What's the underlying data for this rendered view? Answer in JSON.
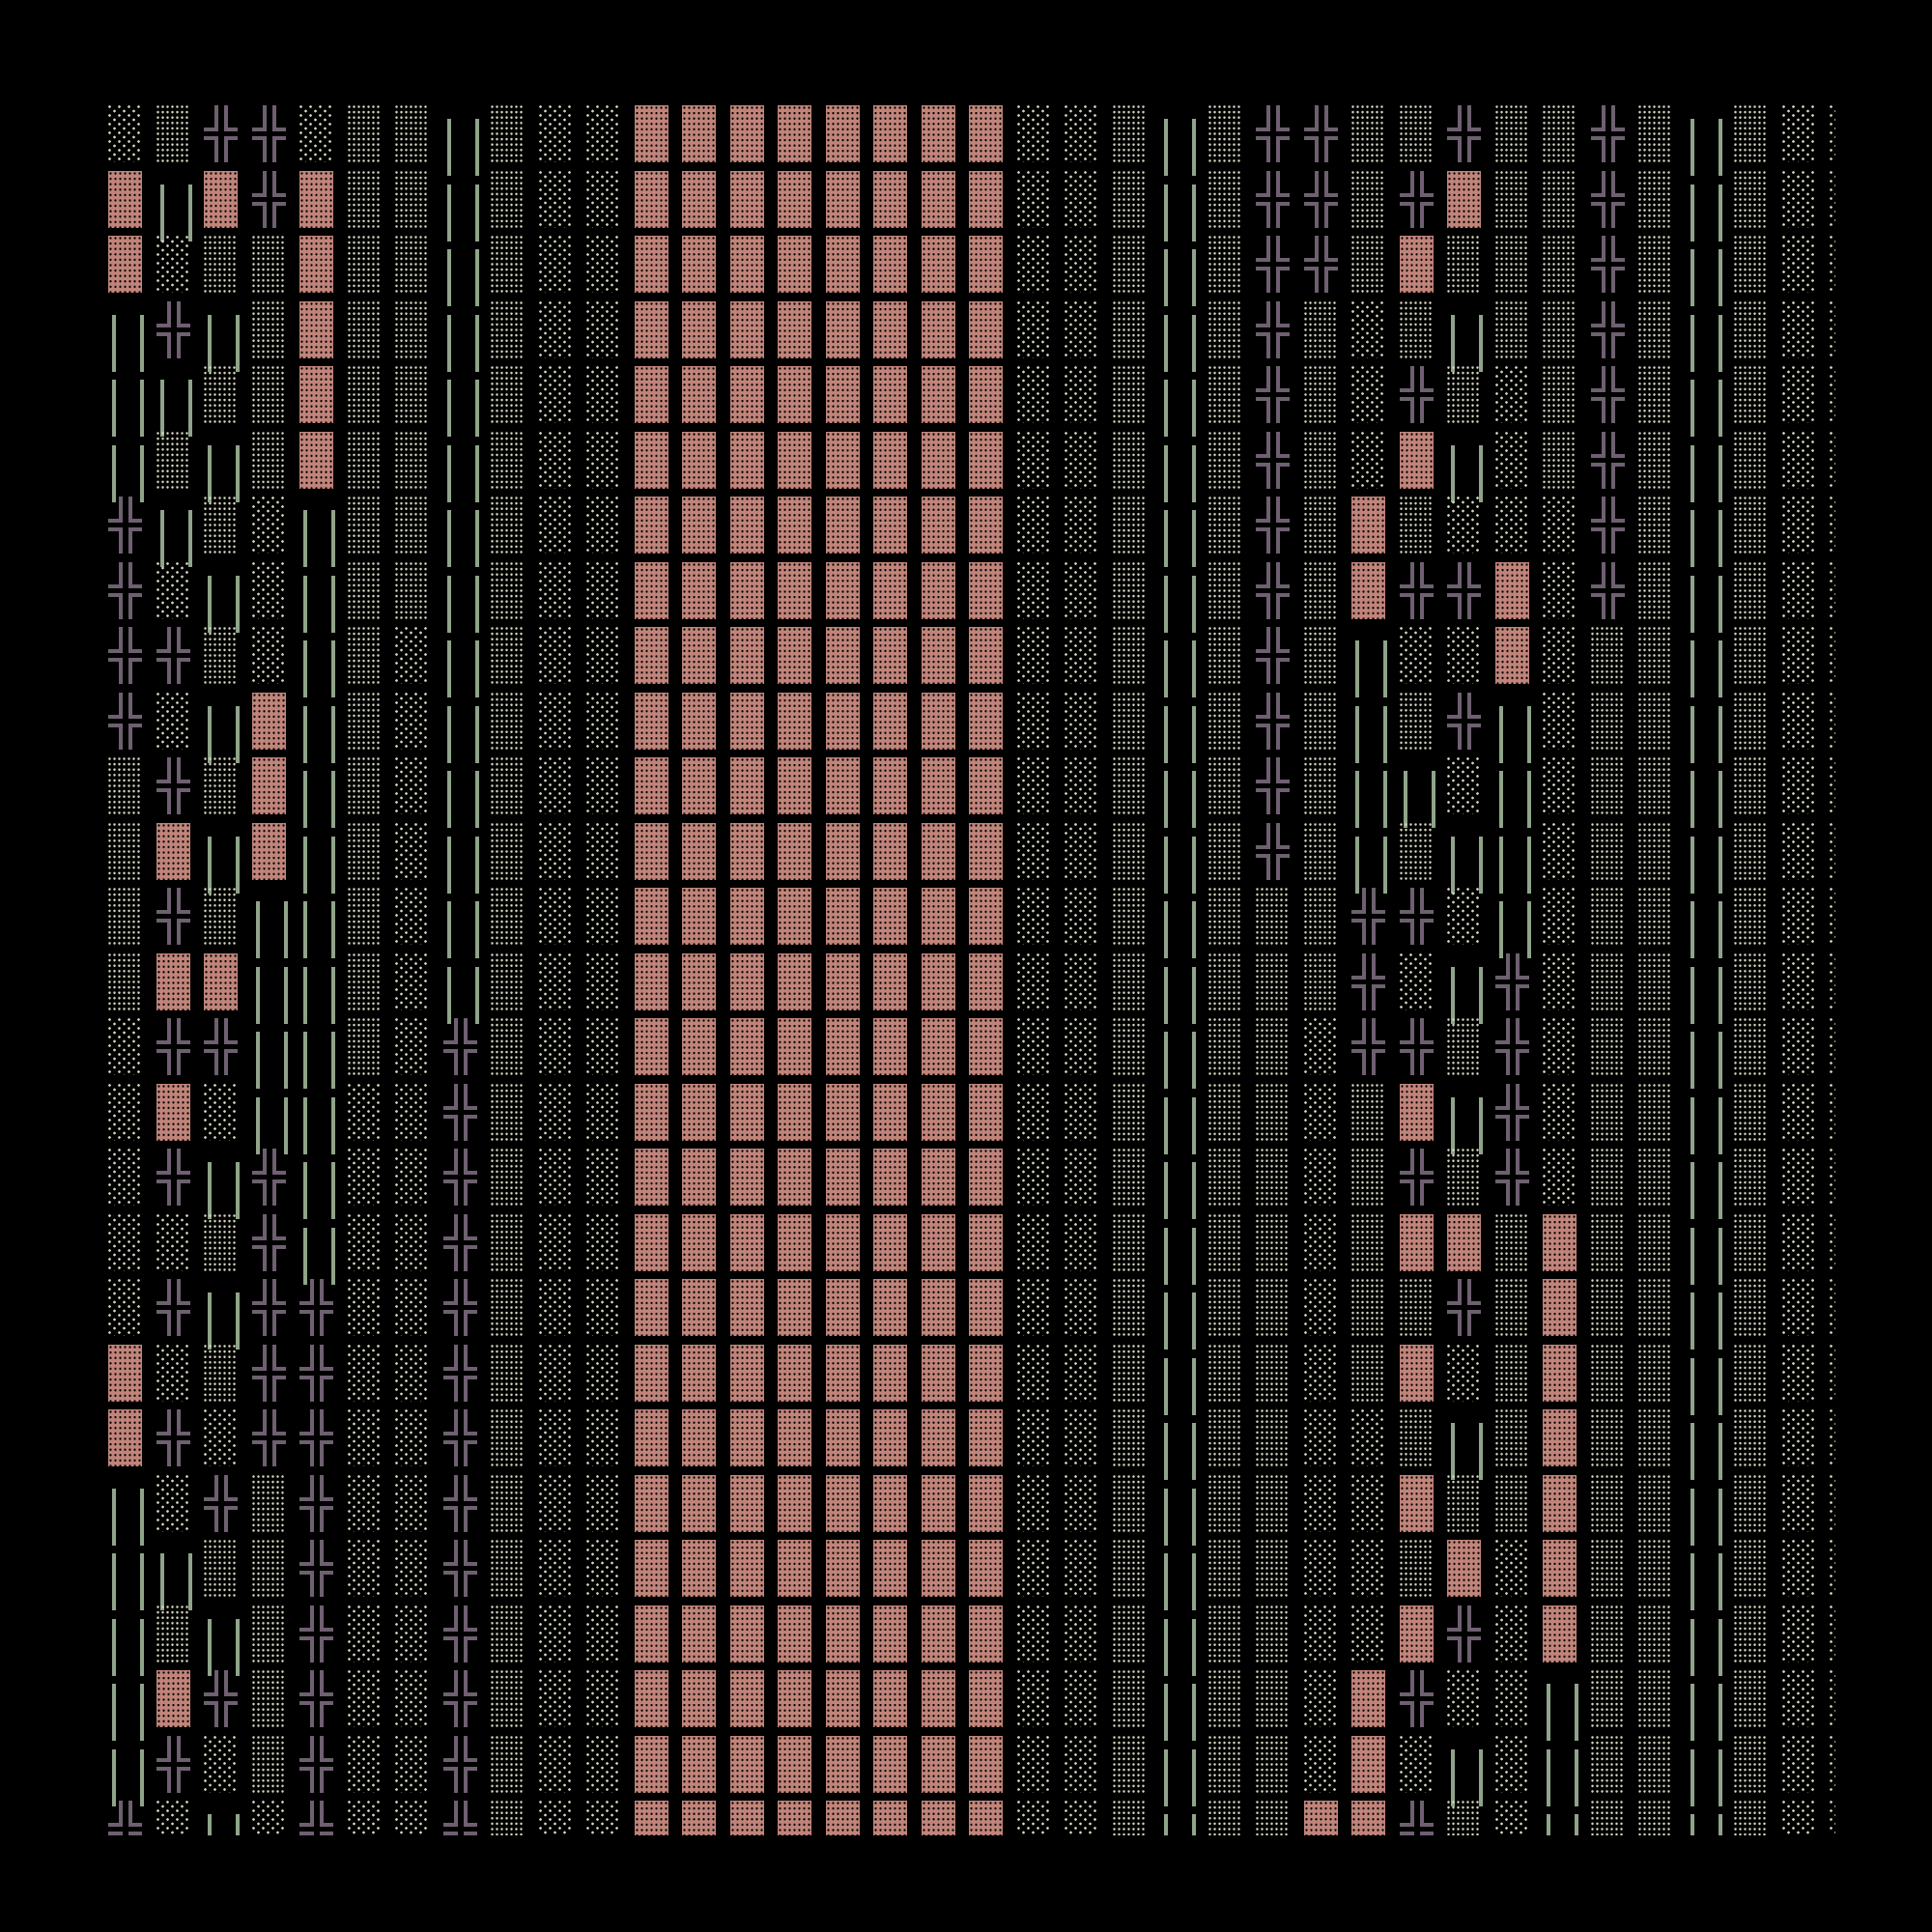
{
  "colors": {
    "background": "#000000",
    "light_shade": "#d6d6be",
    "medium_shade": "#d6d6be",
    "dark_shade": "#c0847a",
    "double_vertical": "#8fa48a",
    "double_cross": "#6e6070"
  },
  "glyph_grid": {
    "rows": [
      "░▒╬╬░▒▒║▒░░▓▓▓▓▓▓▓▓░░▒║▒╬╬▒▒╬▒▒╬▒║▒░░",
      "▓║▓╬▓▒▒║▒░░▓▓▓▓▓▓▓▓░░▒║▒╬╬▒╬▓▒▒╬▒║▒░░",
      "▓░▒▒▓▒▒║▒░░▓▓▓▓▓▓▓▓░░▒║▒╬╬▒▓▒▒▒╬▒║▒░░",
      "║╬║▒▓▒▒║▒░░▓▓▓▓▓▓▓▓░░▒║▒╬▒░▒║▒▒╬▒║▒░░",
      "║║▒▒▓▒▒║▒░░▓▓▓▓▓▓▓▓░░▒║▒╬▒░╬▒░▒╬▒║▒░░",
      "║▒║▒▓▒▒║▒░░▓▓▓▓▓▓▓▓░░▒║▒╬▒░▓║░▒╬▒║▒░░",
      "╬║▒░║▒▒║▒░░▓▓▓▓▓▓▓▓░░▒║▒╬▒▓▒░░░╬▒║▒░░",
      "╬░║░║▒▒║▒░░▓▓▓▓▓▓▓▓░░▒║▒╬▒▓╬╬▓░╬▒║▒░░",
      "╬╬▒░║▒░║▒░░▓▓▓▓▓▓▓▓░░▒║▒╬▒║░░▓░▒▒║▒░░",
      "╬░║▓║▒░║▒░░▓▓▓▓▓▓▓▓░░▒║▒╬▒║▒╬║░▒▒║▒░░",
      "▒╬▒▓║▒░║▒░░▓▓▓▓▓▓▓▓░░▒║▒╬▒║║░║░▒▒║▒░░",
      "▒▓║▓║▒░║▒░░▓▓▓▓▓▓▓▓░░▒║▒╬▒║▒║║░▒▒║▒░░",
      "▒╬▒║║▒░║▒░░▓▓▓▓▓▓▓▓░░▒║▒▒▒╬╬░║░▒▒║▒░░",
      "▒▓▓║║▒░║▒░░▓▓▓▓▓▓▓▓░░▒║▒▒▒╬░║╬░▒▒║▒░░",
      "░╬╬║║▒░╬▒░░▓▓▓▓▓▓▓▓░░▒║▒▒░╬╬▒╬░▒▒║▒░░",
      "░▓░║║░░╬▒░░▓▓▓▓▓▓▓▓░░▒║▒▒░▒▓║╬░▒▒║▒░░",
      "░╬║╬║░░╬▒░░▓▓▓▓▓▓▓▓░░▒║▒▒░▒╬▒╬░▒▒║▒░░",
      "░░▒╬║░░╬▒░░▓▓▓▓▓▓▓▓░░▒║▒▒░▒▓▓▒▓▒▒║▒░░",
      "░╬║╬╬░░╬▒░░▓▓▓▓▓▓▓▓░░▒║▒▒░▒▒╬▒▓▒▒║▒░░",
      "▓░▒╬╬░░╬▒░░▓▓▓▓▓▓▓▓░░▒║▒▒░▒▓░▒▓▒▒║▒░░",
      "▓╬░╬╬░░╬▒░░▓▓▓▓▓▓▓▓░░▒║▒▒░░▒║▒▓▒▒║▒░░",
      "║░╬▒╬░░╬▒░░▓▓▓▓▓▓▓▓░░▒║▒▒░░▓▒▒▓▒▒║▒░░",
      "║║▒▒╬░░╬▒░░▓▓▓▓▓▓▓▓░░▒║▒▒░░▒▓░▓▒▒║▒░░",
      "║▒║▒╬░░╬▒░░▓▓▓▓▓▓▓▓░░▒║▒▒░░▓╬░▓▒▒║▒░░",
      "║▓╬▒╬░░╬▒░░▓▓▓▓▓▓▓▓░░▒║▒▒░▓╬░░║▒▒║▒░░",
      "║╬░▒╬░░╬▒░░▓▓▓▓▓▓▓▓░░▒║▒▒░▓░║░║▒▒║▒░░",
      "╬░║░╬░░╬▒░░▓▓▓▓▓▓▓▓░░▒║▒▒▓▓╬▒░║▒▒║▒░░"
    ]
  }
}
